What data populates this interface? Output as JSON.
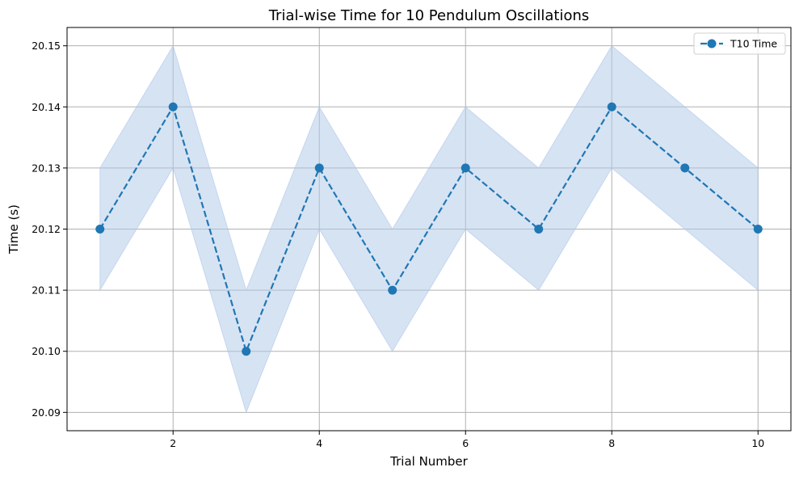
{
  "chart_data": {
    "type": "line",
    "title": "Trial-wise Time for 10 Pendulum Oscillations",
    "xlabel": "Trial Number",
    "ylabel": "Time (s)",
    "x": [
      1,
      2,
      3,
      4,
      5,
      6,
      7,
      8,
      9,
      10
    ],
    "series": [
      {
        "name": "T10 Time",
        "values": [
          20.12,
          20.14,
          20.1,
          20.13,
          20.11,
          20.13,
          20.12,
          20.14,
          20.13,
          20.12
        ],
        "lower": [
          20.11,
          20.13,
          20.09,
          20.12,
          20.1,
          20.12,
          20.11,
          20.13,
          20.12,
          20.11
        ],
        "upper": [
          20.13,
          20.15,
          20.11,
          20.14,
          20.12,
          20.14,
          20.13,
          20.15,
          20.14,
          20.13
        ],
        "line_style": "dashed",
        "marker": "circle",
        "color": "#1f77b4",
        "band_color": "#aec7e8"
      }
    ],
    "xticks": [
      2,
      4,
      6,
      8,
      10
    ],
    "yticks": [
      20.09,
      20.1,
      20.11,
      20.12,
      20.13,
      20.14,
      20.15
    ],
    "ytick_labels": [
      "20.09",
      "20.10",
      "20.11",
      "20.12",
      "20.13",
      "20.14",
      "20.15"
    ],
    "xlim": [
      0.55,
      10.45
    ],
    "ylim": [
      20.087,
      20.153
    ],
    "grid": true,
    "legend_position": "top-right"
  }
}
